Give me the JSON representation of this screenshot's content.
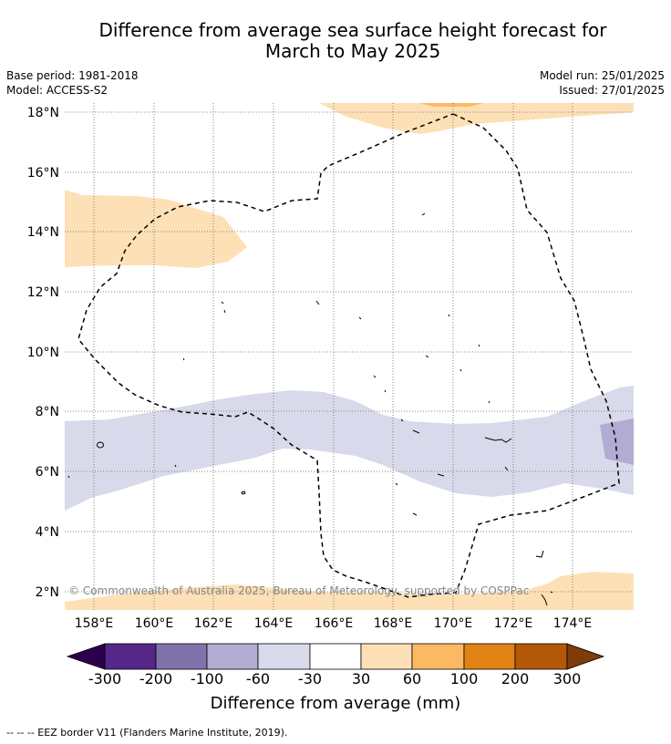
{
  "title_line1": "Difference from average sea surface height forecast for",
  "title_line2": "March to May 2025",
  "meta_left": [
    "Base period: 1981-2018",
    "Model: ACCESS-S2"
  ],
  "meta_right": [
    "Model run: 25/01/2025",
    "Issued: 27/01/2025"
  ],
  "map": {
    "lat_ticks": [
      "18°N",
      "16°N",
      "14°N",
      "12°N",
      "10°N",
      "8°N",
      "6°N",
      "4°N",
      "2°N"
    ],
    "lon_ticks": [
      "158°E",
      "160°E",
      "162°E",
      "164°E",
      "166°E",
      "168°E",
      "170°E",
      "172°E",
      "174°E"
    ],
    "copyright": "© Commonwealth of Australia 2025, Bureau of Meteorology, supported by COSPPac"
  },
  "colorbar": {
    "label": "Difference from average (mm)",
    "ticks": [
      "-300",
      "-200",
      "-100",
      "-60",
      "-30",
      "30",
      "60",
      "100",
      "200",
      "300"
    ],
    "colors": {
      "below": "#2d004b",
      "c1": "#542788",
      "c2": "#8073ac",
      "c3": "#b2abd2",
      "c4": "#d8daeb",
      "c5": "#ffffff",
      "c6": "#fee0b6",
      "c7": "#fdb863",
      "c8": "#e08214",
      "c9": "#b35806",
      "above": "#7f3b08"
    }
  },
  "legend": "--  --  -- EEZ border V11 (Flanders Marine Institute, 2019)."
}
